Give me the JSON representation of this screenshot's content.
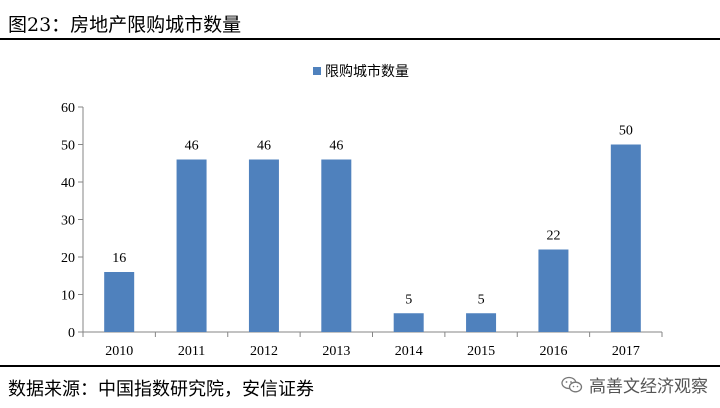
{
  "header": {
    "title": "图23：房地产限购城市数量"
  },
  "footer": {
    "source": "数据来源：中国指数研究院，安信证券"
  },
  "watermark": {
    "text": "高善文经济观察",
    "icon": "wechat-icon"
  },
  "colors": {
    "bar": "#4f81bd",
    "axis": "#868686"
  },
  "chart_data": {
    "type": "bar",
    "categories": [
      "2010",
      "2011",
      "2012",
      "2013",
      "2014",
      "2015",
      "2016",
      "2017"
    ],
    "series": [
      {
        "name": "限购城市数量",
        "values": [
          16,
          46,
          46,
          46,
          5,
          5,
          22,
          50
        ]
      }
    ],
    "yticks": [
      "0",
      "10",
      "20",
      "30",
      "40",
      "50",
      "60"
    ],
    "ylim": [
      0,
      60
    ],
    "grid": false,
    "legend": "top-center",
    "data_labels": true
  }
}
